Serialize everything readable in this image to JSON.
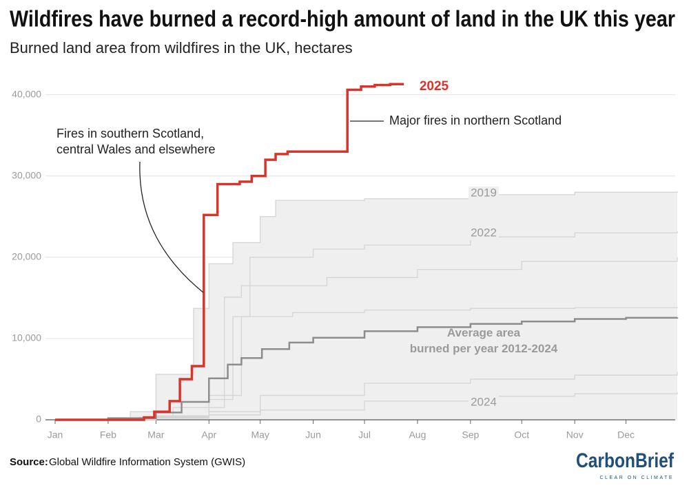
{
  "chart_data": {
    "type": "line",
    "title": "Wildfires have burned a record-high amount of land in the UK this year",
    "subtitle": "Burned land area from wildfires in the UK, hectares",
    "xlim": [
      1,
      365
    ],
    "xticks": [
      {
        "value": 1,
        "label": "Jan"
      },
      {
        "value": 32,
        "label": "Feb"
      },
      {
        "value": 60,
        "label": "Mar"
      },
      {
        "value": 91,
        "label": "Apr"
      },
      {
        "value": 121,
        "label": "May"
      },
      {
        "value": 152,
        "label": "Jun"
      },
      {
        "value": 182,
        "label": "Jul"
      },
      {
        "value": 213,
        "label": "Aug"
      },
      {
        "value": 244,
        "label": "Sep"
      },
      {
        "value": 274,
        "label": "Oct"
      },
      {
        "value": 305,
        "label": "Nov"
      },
      {
        "value": 335,
        "label": "Dec"
      }
    ],
    "ylim": [
      0,
      42000
    ],
    "yticks": [
      0,
      {
        "value": 10000,
        "label": "10,000"
      },
      {
        "value": 20000,
        "label": "20,000"
      },
      {
        "value": 30000,
        "label": "30,000"
      },
      {
        "value": 40000,
        "label": "40,000"
      }
    ],
    "grid": true,
    "band": {
      "color": "#efefef",
      "x": [
        1,
        45,
        60,
        82,
        91,
        105,
        121,
        130,
        182,
        244,
        305,
        365
      ],
      "values": [
        0,
        1000,
        5600,
        13700,
        19200,
        21800,
        25000,
        27000,
        27200,
        27700,
        28000,
        28100
      ]
    },
    "series": [
      {
        "color": "#d4d4d4",
        "x": [
          1,
          50,
          70,
          91,
          110,
          140,
          182,
          244,
          305,
          365
        ],
        "values": [
          0,
          300,
          1500,
          3000,
          12700,
          13200,
          13500,
          13700,
          13800,
          13900
        ]
      },
      {
        "color": "#d4d4d4",
        "x": [
          1,
          60,
          91,
          100,
          110,
          160,
          213,
          274,
          365
        ],
        "values": [
          0,
          400,
          1500,
          15100,
          16500,
          17500,
          18500,
          19500,
          20000
        ]
      },
      {
        "color": "#d4d4d4",
        "x": [
          1,
          60,
          91,
          121,
          182,
          244,
          305,
          365
        ],
        "values": [
          0,
          300,
          1000,
          3000,
          4500,
          5000,
          5500,
          5900
        ]
      },
      {
        "name": "2019",
        "color": "#d4d4d4",
        "x": [
          1,
          45,
          60,
          82,
          91,
          105,
          121,
          130,
          182,
          244,
          305,
          365
        ],
        "values": [
          0,
          1000,
          5600,
          13700,
          19200,
          21800,
          25000,
          27000,
          27200,
          27700,
          28000,
          28100
        ]
      },
      {
        "name": "2022",
        "color": "#d4d4d4",
        "x": [
          1,
          60,
          91,
          105,
          115,
          152,
          182,
          244,
          305,
          365
        ],
        "values": [
          0,
          500,
          2500,
          12700,
          20000,
          21000,
          21500,
          22500,
          23000,
          23200
        ]
      },
      {
        "name": "2024",
        "color": "#d4d4d4",
        "x": [
          1,
          60,
          91,
          121,
          182,
          244,
          305,
          365
        ],
        "values": [
          0,
          200,
          600,
          1200,
          2300,
          2900,
          3200,
          3400
        ]
      },
      {
        "name": "Average area burned per year 2012-2024",
        "color": "#8c8c8c",
        "x": [
          1,
          32,
          60,
          75,
          91,
          102,
          110,
          122,
          138,
          152,
          182,
          213,
          244,
          274,
          305,
          335,
          365
        ],
        "values": [
          0,
          200,
          900,
          2200,
          5100,
          6800,
          7600,
          8700,
          9500,
          10100,
          10900,
          11400,
          11800,
          12100,
          12400,
          12550,
          12600
        ]
      },
      {
        "name": "2025",
        "color": "#d9342b",
        "x": [
          1,
          53,
          59,
          68,
          74,
          81,
          88,
          96,
          109,
          116,
          124,
          130,
          137,
          172,
          180,
          188,
          197,
          205
        ],
        "values": [
          0,
          300,
          1000,
          2300,
          5000,
          6600,
          25200,
          29000,
          29300,
          30000,
          32000,
          32700,
          33000,
          40600,
          41000,
          41200,
          41300,
          41300
        ]
      }
    ],
    "annotations": [
      "Fires in southern Scotland,",
      "central Wales and elsewhere",
      "Major fires in northern Scotland"
    ],
    "source_label": "Source:",
    "source": "Global Wildfire Information System (GWIS)",
    "logo": "CarbonBrief",
    "logo_tagline": "CLEAR ON CLIMATE"
  }
}
